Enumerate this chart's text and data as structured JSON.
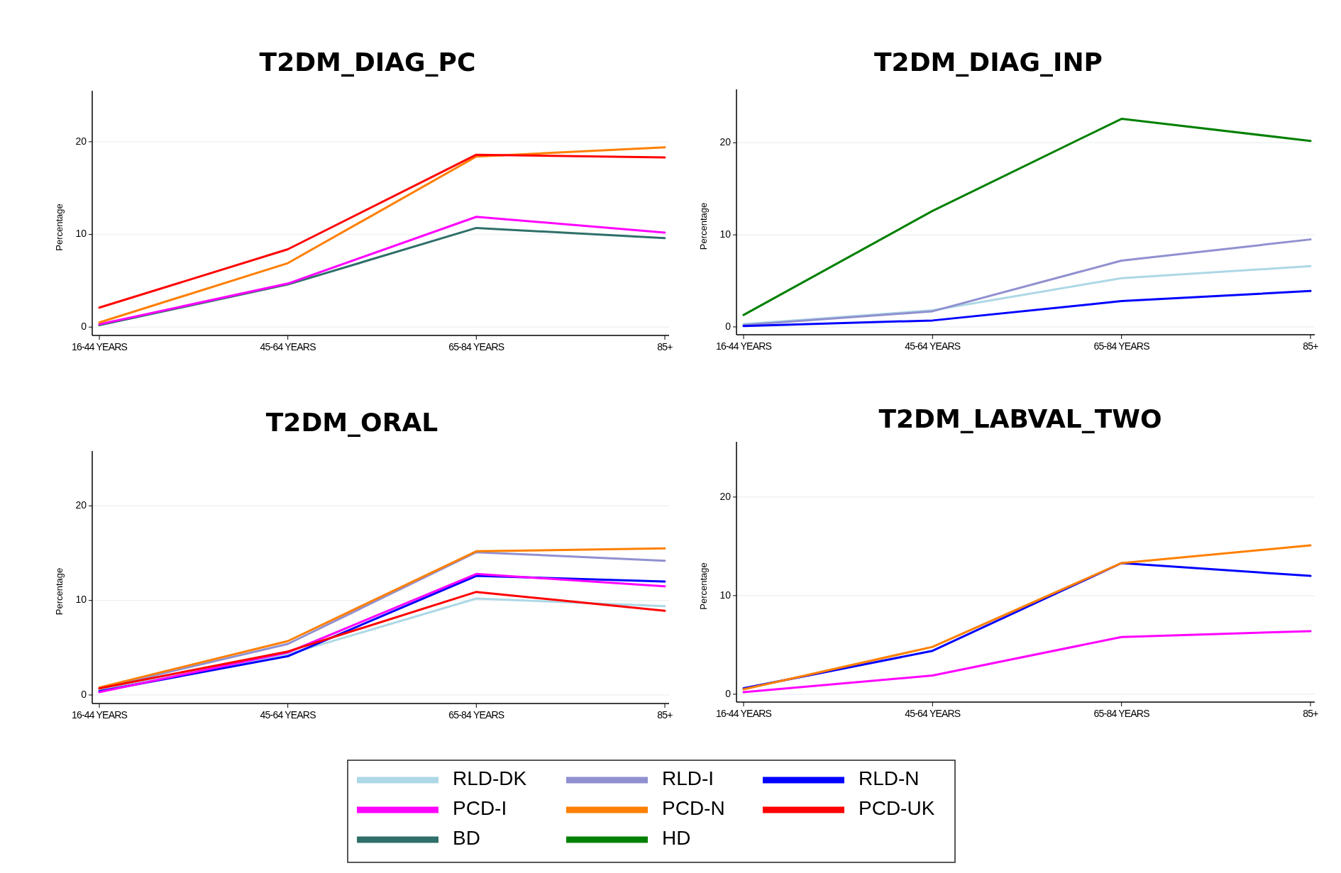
{
  "chart_data": [
    {
      "type": "line",
      "title": "T2DM_DIAG_PC",
      "ylabel": "Percentage",
      "categories": [
        "16-44 YEARS",
        "45-64 YEARS",
        "65-84 YEARS",
        "85+"
      ],
      "ylim": [
        -0.9,
        25.5
      ],
      "yticks": [
        0,
        10,
        20
      ],
      "grid": "y",
      "legend": "bottom",
      "series": [
        {
          "name": "BD",
          "color": "#2f6f6a",
          "values": [
            0.2,
            4.6,
            10.7,
            9.6
          ]
        },
        {
          "name": "PCD-I",
          "color": "#ff00ff",
          "values": [
            0.3,
            4.7,
            11.9,
            10.2
          ]
        },
        {
          "name": "PCD-N",
          "color": "#ff7f00",
          "values": [
            0.5,
            6.9,
            18.4,
            19.4
          ]
        },
        {
          "name": "PCD-UK",
          "color": "#ff0000",
          "values": [
            2.1,
            8.4,
            18.6,
            18.3
          ]
        }
      ]
    },
    {
      "type": "line",
      "title": "T2DM_DIAG_INP",
      "ylabel": "Percentage",
      "categories": [
        "16-44 YEARS",
        "45-64 YEARS",
        "65-84 YEARS",
        "85+"
      ],
      "ylim": [
        -0.85,
        25.8
      ],
      "yticks": [
        0,
        10,
        20
      ],
      "grid": "y",
      "legend": "bottom",
      "series": [
        {
          "name": "RLD-DK",
          "color": "#add8e6",
          "values": [
            0.3,
            1.8,
            5.3,
            6.6
          ]
        },
        {
          "name": "RLD-I",
          "color": "#9090d0",
          "values": [
            0.2,
            1.7,
            7.2,
            9.5
          ]
        },
        {
          "name": "RLD-N",
          "color": "#0000ff",
          "values": [
            0.1,
            0.7,
            2.8,
            3.9
          ]
        },
        {
          "name": "HD",
          "color": "#008000",
          "values": [
            1.3,
            12.6,
            22.6,
            20.2
          ]
        }
      ]
    },
    {
      "type": "line",
      "title": "T2DM_ORAL",
      "ylabel": "Percentage",
      "categories": [
        "16-44 YEARS",
        "45-64 YEARS",
        "65-84 YEARS",
        "85+"
      ],
      "ylim": [
        -0.9,
        25.8
      ],
      "yticks": [
        0,
        10,
        20
      ],
      "grid": "y",
      "legend": "bottom",
      "series": [
        {
          "name": "RLD-DK",
          "color": "#add8e6",
          "values": [
            0.5,
            4.3,
            10.2,
            9.4
          ]
        },
        {
          "name": "RLD-I",
          "color": "#9090d0",
          "values": [
            0.7,
            5.4,
            15.1,
            14.2
          ]
        },
        {
          "name": "RLD-N",
          "color": "#0000ff",
          "values": [
            0.4,
            4.1,
            12.6,
            12.0
          ]
        },
        {
          "name": "PCD-I",
          "color": "#ff00ff",
          "values": [
            0.3,
            4.5,
            12.8,
            11.5
          ]
        },
        {
          "name": "PCD-N",
          "color": "#ff7f00",
          "values": [
            0.8,
            5.7,
            15.2,
            15.5
          ]
        },
        {
          "name": "PCD-UK",
          "color": "#ff0000",
          "values": [
            0.7,
            4.6,
            10.9,
            8.9
          ]
        }
      ]
    },
    {
      "type": "line",
      "title": "T2DM_LABVAL_TWO",
      "ylabel": "Percentage",
      "categories": [
        "16-44 YEARS",
        "45-64 YEARS",
        "65-84 YEARS",
        "85+"
      ],
      "ylim": [
        -0.8,
        25.6
      ],
      "yticks": [
        0,
        10,
        20
      ],
      "grid": "y",
      "legend": "bottom",
      "series": [
        {
          "name": "RLD-N",
          "color": "#0000ff",
          "values": [
            0.6,
            4.4,
            13.3,
            12.0
          ]
        },
        {
          "name": "PCD-I",
          "color": "#ff00ff",
          "values": [
            0.2,
            1.9,
            5.8,
            6.4
          ]
        },
        {
          "name": "PCD-N",
          "color": "#ff7f00",
          "values": [
            0.5,
            4.8,
            13.3,
            15.1
          ]
        }
      ]
    }
  ]
}
